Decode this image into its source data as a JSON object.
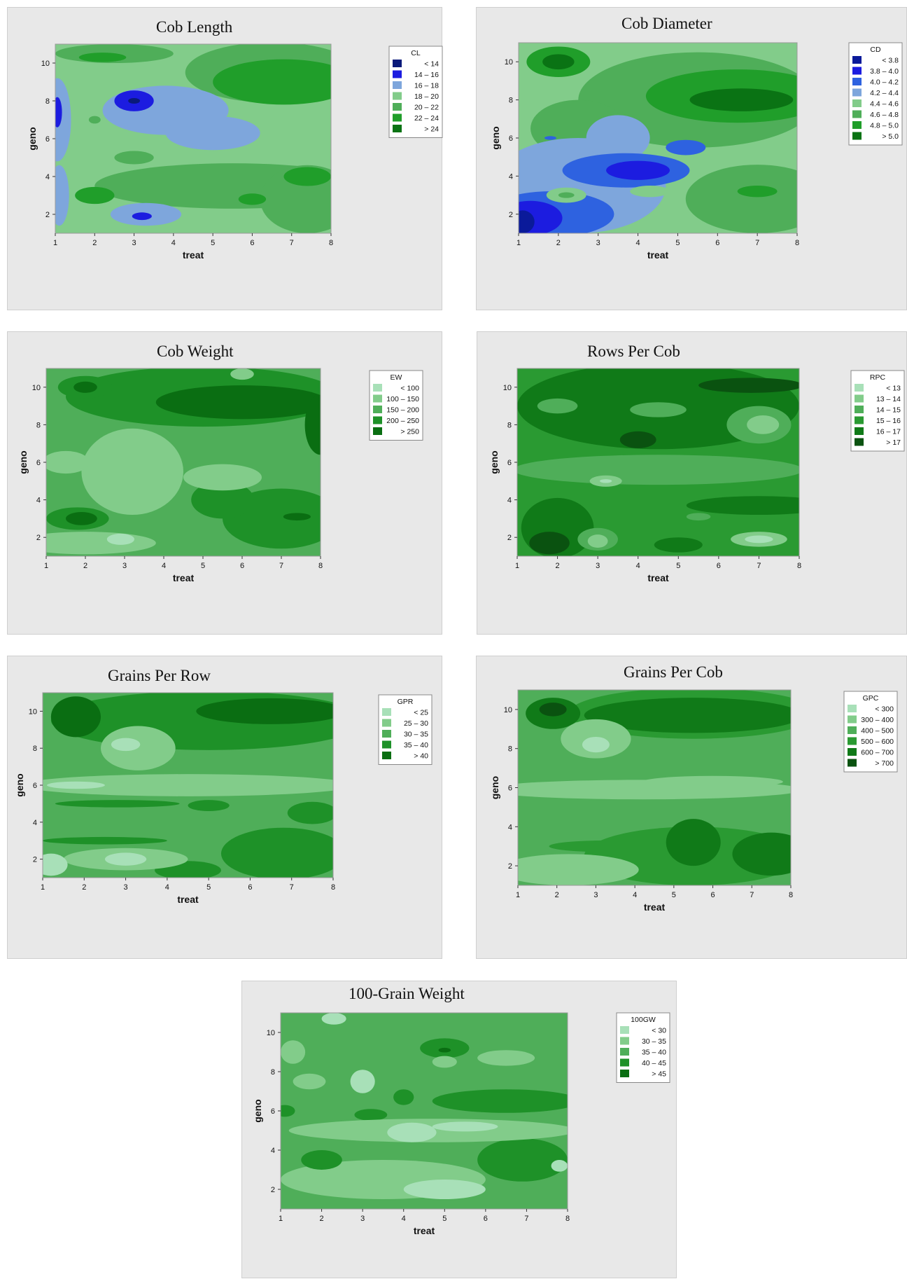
{
  "charts": [
    {
      "id": "cl",
      "title": "Cob Length",
      "legend_title": "CL",
      "legend": [
        "<  14",
        "14  –  16",
        "16  –  18",
        "18  –  20",
        "20  –  22",
        "22  –  24",
        ">  24"
      ],
      "colors": [
        "#0a1a7a",
        "#1c1ce0",
        "#7ea6dc",
        "#82cc8a",
        "#4fae59",
        "#209e2a",
        "#0a7314"
      ]
    },
    {
      "id": "cd",
      "title": "Cob Diameter",
      "legend_title": "CD",
      "legend": [
        "<  3.8",
        "3.8  –  4.0",
        "4.0  –  4.2",
        "4.2  –  4.4",
        "4.4  –  4.6",
        "4.6  –  4.8",
        "4.8  –  5.0",
        ">  5.0"
      ],
      "colors": [
        "#0a1a9a",
        "#1c1ce0",
        "#2e62e0",
        "#7ea6dc",
        "#82cc8a",
        "#4fae59",
        "#209e2a",
        "#0a7314"
      ]
    },
    {
      "id": "ew",
      "title": "Cob Weight",
      "legend_title": "EW",
      "legend": [
        "<  100",
        "100  –  150",
        "150  –  200",
        "200  –  250",
        ">  250"
      ],
      "colors": [
        "#a8e0b8",
        "#82cc8a",
        "#4fae59",
        "#1e9128",
        "#0a6e12"
      ]
    },
    {
      "id": "rpc",
      "title": "Rows Per Cob",
      "legend_title": "RPC",
      "legend": [
        "<  13",
        "13  –  14",
        "14  –  15",
        "15  –  16",
        "16  –  17",
        ">  17"
      ],
      "colors": [
        "#a8e0b8",
        "#82cc8a",
        "#4fae59",
        "#2a9a32",
        "#107a18",
        "#0a5210"
      ]
    },
    {
      "id": "gpr",
      "title": "Grains Per Row",
      "legend_title": "GPR",
      "legend": [
        "<  25",
        "25  –  30",
        "30  –  35",
        "35  –  40",
        ">  40"
      ],
      "colors": [
        "#a8e0b8",
        "#82cc8a",
        "#4fae59",
        "#1e9128",
        "#0a6e12"
      ]
    },
    {
      "id": "gpc",
      "title": "Grains Per Cob",
      "legend_title": "GPC",
      "legend": [
        "<  300",
        "300  –  400",
        "400  –  500",
        "500  –  600",
        "600  –  700",
        ">  700"
      ],
      "colors": [
        "#a8e0b8",
        "#82cc8a",
        "#4fae59",
        "#2a9a32",
        "#107a18",
        "#0a5210"
      ]
    },
    {
      "id": "gw",
      "title": "100-Grain Weight",
      "legend_title": "100GW",
      "legend": [
        "<  30",
        "30  –  35",
        "35  –  40",
        "40  –  45",
        ">  45"
      ],
      "colors": [
        "#a8e0b8",
        "#82cc8a",
        "#4fae59",
        "#1e9128",
        "#0a6e12"
      ]
    }
  ],
  "axes": {
    "xlabel": "treat",
    "ylabel": "geno",
    "xticks": [
      "1",
      "2",
      "3",
      "4",
      "5",
      "6",
      "7",
      "8"
    ],
    "yticks": [
      "2",
      "4",
      "6",
      "8",
      "10"
    ]
  },
  "chart_data": [
    {
      "type": "heatmap",
      "title": "Cob Length",
      "xlabel": "treat",
      "ylabel": "geno",
      "xlim": [
        1,
        8
      ],
      "ylim": [
        1,
        11
      ],
      "legend_title": "CL",
      "levels": [
        "<  14",
        "14  –  16",
        "16  –  18",
        "18  –  20",
        "20  –  22",
        "22  –  24",
        ">  24"
      ]
    },
    {
      "type": "heatmap",
      "title": "Cob Diameter",
      "xlabel": "treat",
      "ylabel": "geno",
      "xlim": [
        1,
        8
      ],
      "ylim": [
        1,
        11
      ],
      "legend_title": "CD",
      "levels": [
        "<  3.8",
        "3.8  –  4.0",
        "4.0  –  4.2",
        "4.2  –  4.4",
        "4.4  –  4.6",
        "4.6  –  4.8",
        "4.8  –  5.0",
        ">  5.0"
      ]
    },
    {
      "type": "heatmap",
      "title": "Cob Weight",
      "xlabel": "treat",
      "ylabel": "geno",
      "xlim": [
        1,
        8
      ],
      "ylim": [
        1,
        11
      ],
      "legend_title": "EW",
      "levels": [
        "<  100",
        "100  –  150",
        "150  –  200",
        "200  –  250",
        ">  250"
      ]
    },
    {
      "type": "heatmap",
      "title": "Rows Per Cob",
      "xlabel": "treat",
      "ylabel": "geno",
      "xlim": [
        1,
        8
      ],
      "ylim": [
        1,
        11
      ],
      "legend_title": "RPC",
      "levels": [
        "<  13",
        "13  –  14",
        "14  –  15",
        "15  –  16",
        "16  –  17",
        ">  17"
      ]
    },
    {
      "type": "heatmap",
      "title": "Grains Per Row",
      "xlabel": "treat",
      "ylabel": "geno",
      "xlim": [
        1,
        8
      ],
      "ylim": [
        1,
        11
      ],
      "legend_title": "GPR",
      "levels": [
        "<  25",
        "25  –  30",
        "30  –  35",
        "35  –  40",
        ">  40"
      ]
    },
    {
      "type": "heatmap",
      "title": "Grains Per Cob",
      "xlabel": "treat",
      "ylabel": "geno",
      "xlim": [
        1,
        8
      ],
      "ylim": [
        1,
        11
      ],
      "legend_title": "GPC",
      "levels": [
        "<  300",
        "300  –  400",
        "400  –  500",
        "500  –  600",
        "600  –  700",
        ">  700"
      ]
    },
    {
      "type": "heatmap",
      "title": "100-Grain Weight",
      "xlabel": "treat",
      "ylabel": "geno",
      "xlim": [
        1,
        8
      ],
      "ylim": [
        1,
        11
      ],
      "legend_title": "100GW",
      "levels": [
        "<  30",
        "30  –  35",
        "35  –  40",
        "40  –  45",
        ">  45"
      ]
    }
  ]
}
